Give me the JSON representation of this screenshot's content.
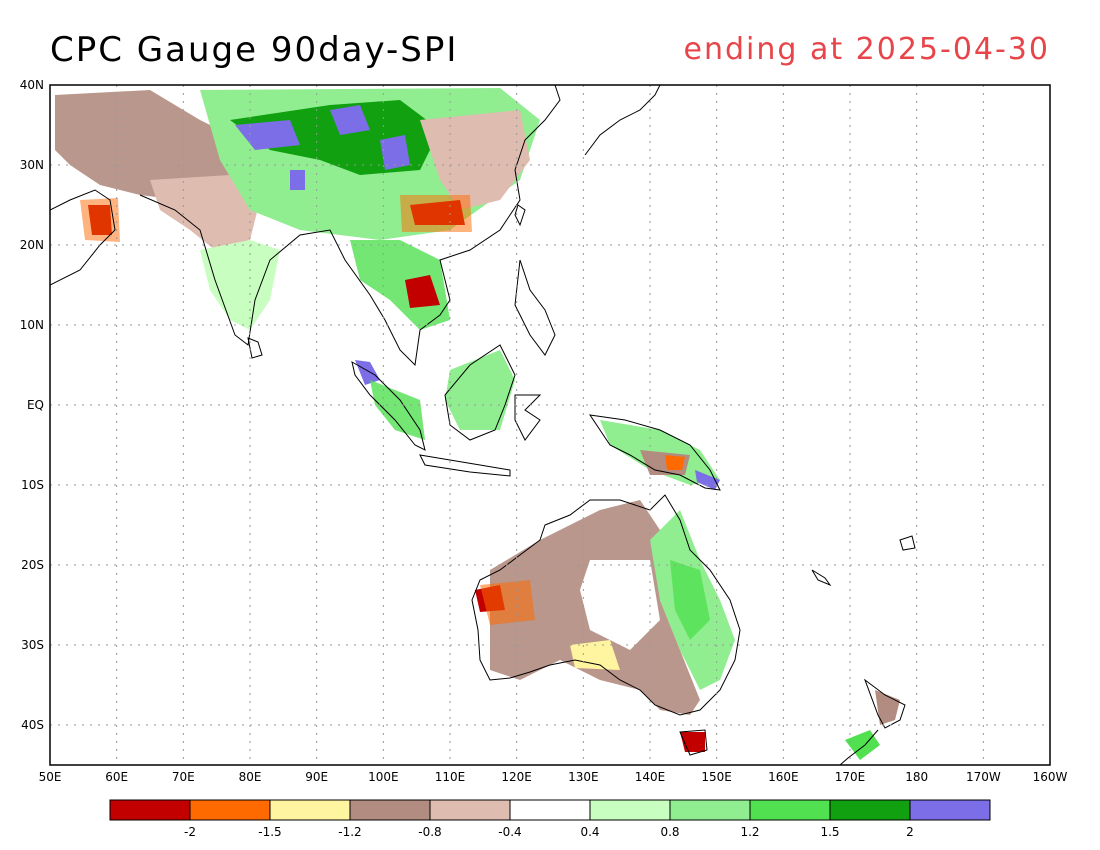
{
  "title": "CPC Gauge 90day-SPI",
  "subtitle": "ending at 2025-04-30",
  "lat_labels": [
    "40N",
    "30N",
    "20N",
    "10N",
    "EQ",
    "10S",
    "20S",
    "30S",
    "40S"
  ],
  "lon_labels": [
    "50E",
    "60E",
    "70E",
    "80E",
    "90E",
    "100E",
    "110E",
    "120E",
    "130E",
    "140E",
    "150E",
    "160E",
    "170E",
    "180",
    "170W",
    "160W"
  ],
  "colorbar": {
    "colors": [
      "#c20000",
      "#ff6a00",
      "#fff5a0",
      "#b28c80",
      "#dfbcb0",
      "#ffffff",
      "#c8ffc0",
      "#90ee90",
      "#50e050",
      "#10a010",
      "#7b6ee6"
    ],
    "labels": [
      "-2",
      "-1.5",
      "-1.2",
      "-0.8",
      "-0.4",
      "0.4",
      "0.8",
      "1.2",
      "1.5",
      "2"
    ]
  },
  "map": {
    "lon_range": [
      50,
      200
    ],
    "lat_range": [
      -45,
      40
    ],
    "grid": true
  }
}
